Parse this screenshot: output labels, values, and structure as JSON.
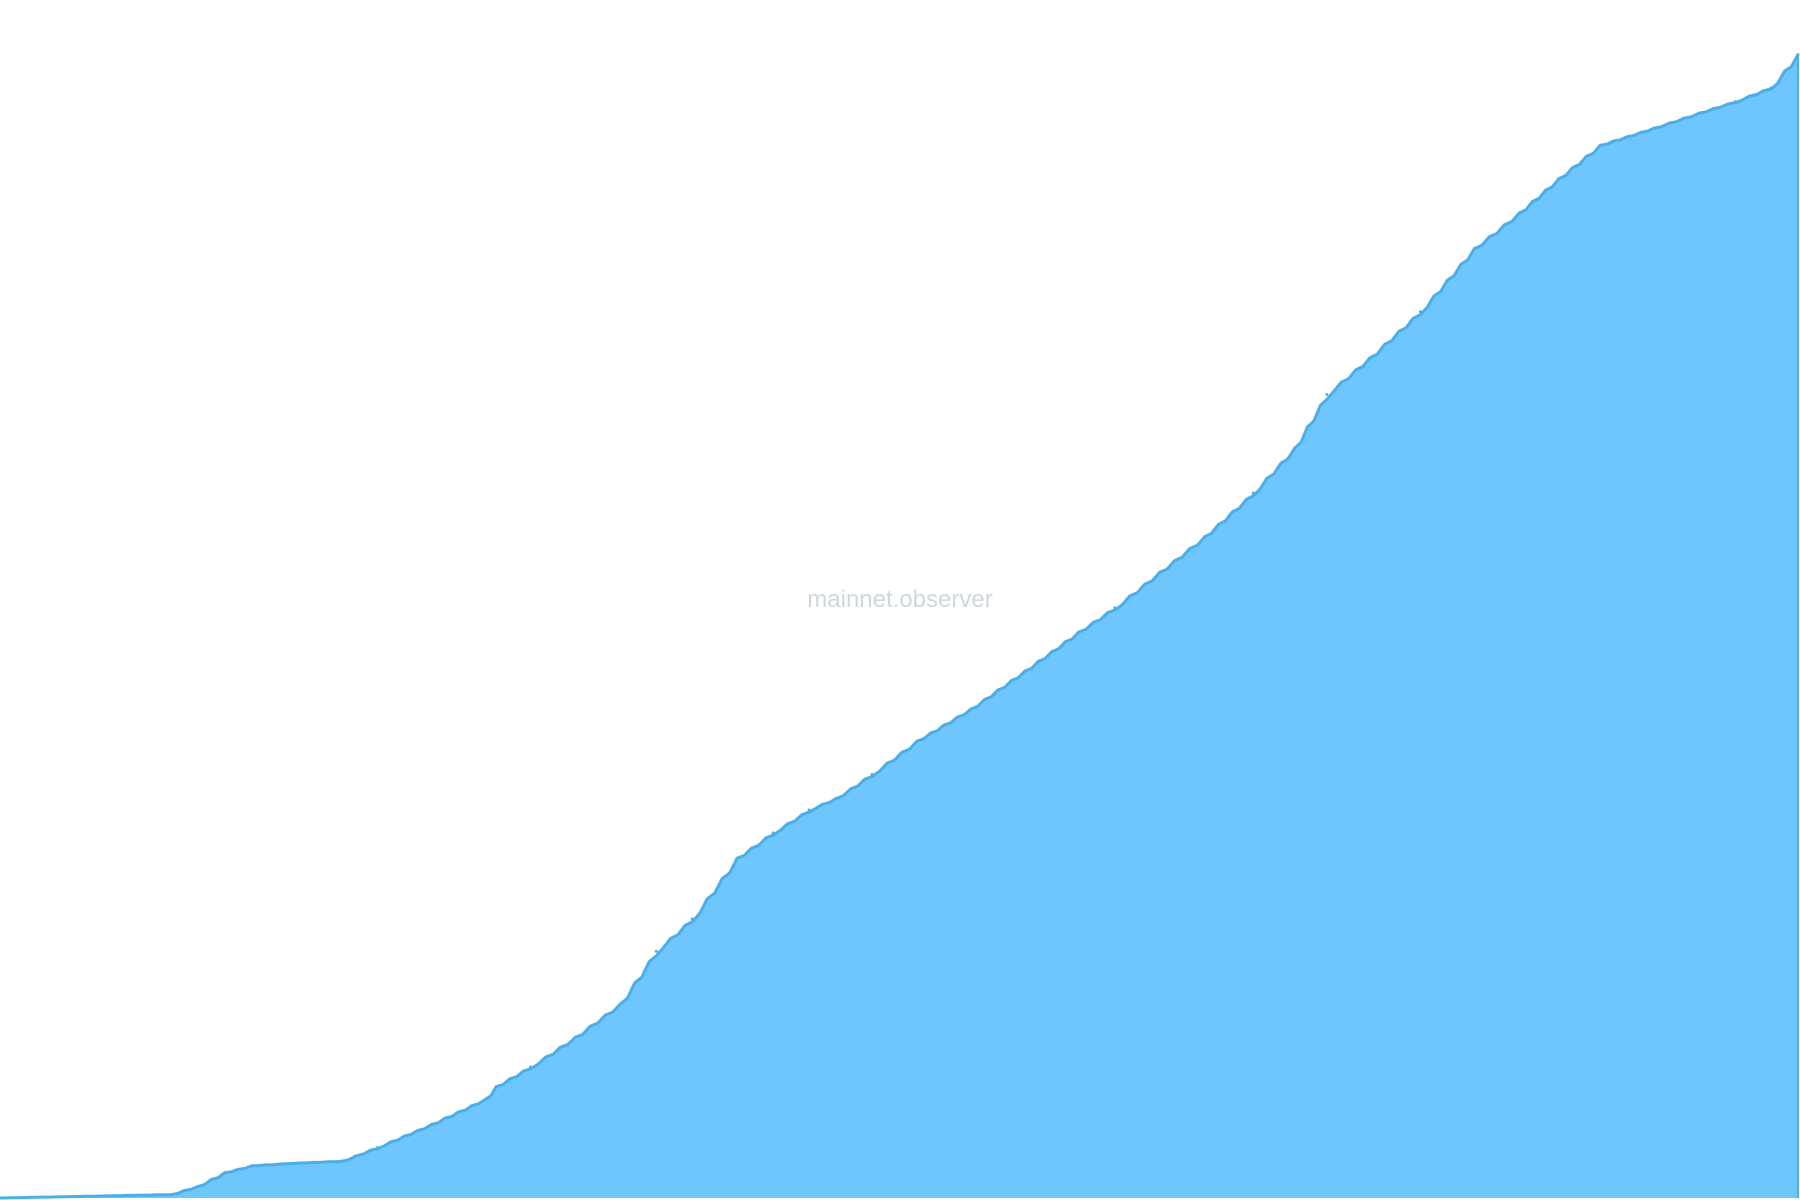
{
  "watermark": "mainnet.observer",
  "colors": {
    "area_fill": "#6fc6fc",
    "line_stroke": "#4aaee8",
    "background": "#ffffff",
    "watermark": "#cfd6dd"
  },
  "chart_data": {
    "type": "area",
    "title": "",
    "xlabel": "",
    "ylabel": "",
    "grid": false,
    "legend": "none",
    "xlim": [
      0,
      100
    ],
    "ylim": [
      0,
      100
    ],
    "series": [
      {
        "x": [
          0,
          9.5,
          11,
          12.5,
          14,
          16,
          19,
          21,
          24,
          27,
          27.6,
          29.5,
          32,
          34.5,
          36.5,
          38.5,
          41,
          43,
          45,
          46.5,
          48.5,
          51,
          54,
          57,
          60,
          62,
          64.5,
          67,
          69.7,
          72,
          73.8,
          76.2,
          79,
          82,
          84.5,
          86.7,
          89,
          92,
          94.5,
          96.5,
          98.5,
          100
        ],
        "y": [
          0,
          0.3,
          1,
          2.2,
          2.8,
          3,
          3.2,
          4.4,
          6.4,
          8.6,
          9.7,
          11.4,
          14,
          16.9,
          21.5,
          24.3,
          29.6,
          31.8,
          33.8,
          34.8,
          36.9,
          39.8,
          42.6,
          45.9,
          49.3,
          51.4,
          54.5,
          57.6,
          61.4,
          65.3,
          70,
          73.2,
          77.2,
          82.7,
          85.8,
          88.8,
          91.7,
          93.2,
          94.5,
          95.5,
          96.7,
          99.6
        ]
      }
    ]
  }
}
